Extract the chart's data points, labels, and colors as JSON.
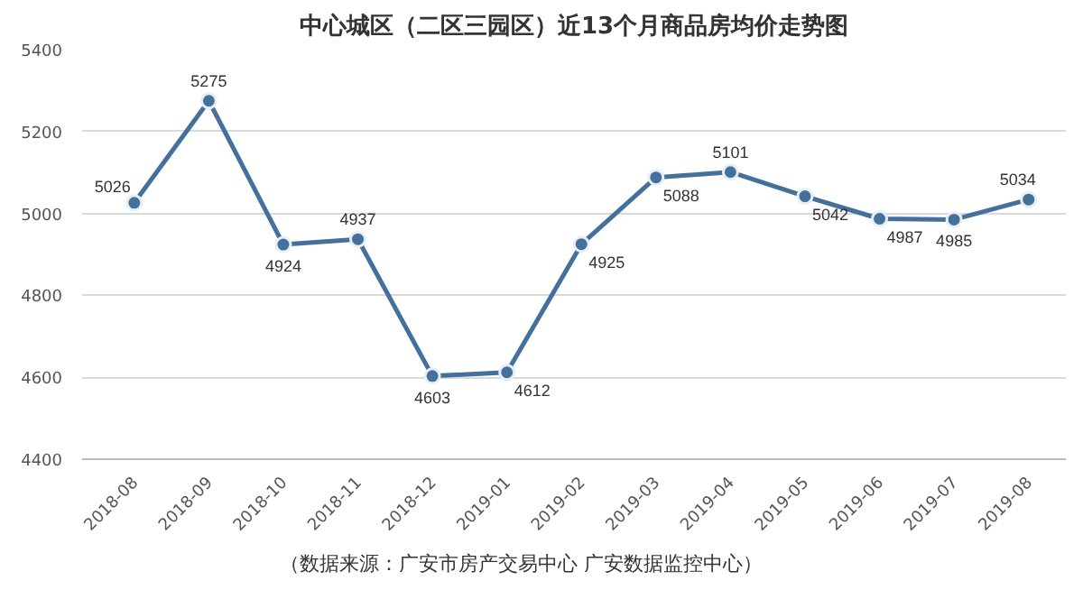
{
  "chart_data": {
    "type": "line",
    "title": "中心城区（二区三园区）近13个月商品房均价走势图",
    "categories": [
      "2018-08",
      "2018-09",
      "2018-10",
      "2018-11",
      "2018-12",
      "2019-01",
      "2019-02",
      "2019-03",
      "2019-04",
      "2019-05",
      "2019-06",
      "2019-07",
      "2019-08"
    ],
    "series": [
      {
        "color": "#44709c",
        "values": [
          5026,
          5275,
          4924,
          4937,
          4603,
          4612,
          4925,
          5088,
          5101,
          5042,
          4987,
          4985,
          5034
        ]
      }
    ],
    "ylim": [
      4400,
      5400
    ],
    "yticks": [
      4400,
      4600,
      4800,
      5000,
      5200,
      5400
    ],
    "grid": "y",
    "marker": "circle",
    "line_style": "solid",
    "data_labels": true,
    "annotations": [
      "（数据来源：广安市房产交易中心  广安数据监控中心）"
    ]
  }
}
